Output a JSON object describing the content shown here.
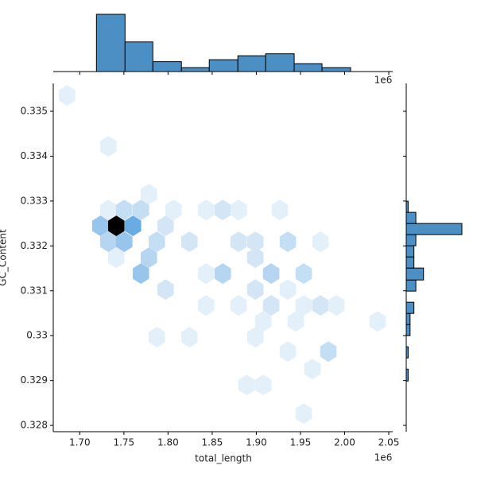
{
  "chart_data": {
    "type": "hexbin-joint",
    "xlabel": "total_length",
    "ylabel": "GC_Content",
    "x_offset_label": "1e6",
    "xlim": [
      1.67,
      2.0545
    ],
    "ylim": [
      0.32786,
      0.33562
    ],
    "xticks": [
      {
        "value": 1.7,
        "label": "1.70"
      },
      {
        "value": 1.75,
        "label": "1.75"
      },
      {
        "value": 1.8,
        "label": "1.80"
      },
      {
        "value": 1.85,
        "label": "1.85"
      },
      {
        "value": 1.9,
        "label": "1.90"
      },
      {
        "value": 1.95,
        "label": "1.95"
      },
      {
        "value": 2.0,
        "label": "2.00"
      },
      {
        "value": 2.05,
        "label": "2.05"
      }
    ],
    "yticks": [
      0.328,
      0.329,
      0.33,
      0.331,
      0.332,
      0.333,
      0.334,
      0.335
    ],
    "cmap": [
      "#f2f7fc",
      "#5aa3e0",
      "#000000"
    ],
    "hex_x": [
      1.6856,
      1.7324,
      1.7234,
      1.7414,
      1.7603,
      1.7324,
      1.7504,
      1.7693,
      1.7783,
      1.7324,
      1.7504,
      1.7873,
      1.7972,
      1.7414,
      1.7783,
      1.7693,
      1.8062,
      1.8242,
      1.8431,
      1.862,
      1.7972,
      1.862,
      1.8431,
      1.88,
      1.8989,
      1.9168,
      1.9357,
      1.9537,
      1.9726,
      1.8989,
      1.8989,
      1.88,
      1.9168,
      1.9078,
      1.9357,
      1.9726,
      1.9906,
      1.9537,
      1.8431,
      1.7873,
      1.8242,
      1.8989,
      1.9447,
      1.9816,
      1.9357,
      1.9636,
      2.0374,
      1.9078,
      1.889,
      1.9537,
      1.88,
      1.9267
    ],
    "hex_y": [
      0.335355,
      0.33422,
      0.332447,
      0.332447,
      0.332447,
      0.332801,
      0.332801,
      0.332801,
      0.333156,
      0.332092,
      0.332092,
      0.332092,
      0.332447,
      0.331738,
      0.331738,
      0.331383,
      0.332801,
      0.332092,
      0.332801,
      0.332801,
      0.331028,
      0.331383,
      0.331383,
      0.332092,
      0.332092,
      0.331383,
      0.332092,
      0.331383,
      0.332092,
      0.331738,
      0.331028,
      0.330674,
      0.330674,
      0.330319,
      0.331028,
      0.330674,
      0.330674,
      0.330674,
      0.330674,
      0.329965,
      0.329965,
      0.329965,
      0.330319,
      0.329645,
      0.329645,
      0.329255,
      0.330319,
      0.328901,
      0.328901,
      0.328262,
      0.332801,
      0.332801
    ],
    "hex_counts": [
      1,
      1,
      6,
      20,
      9,
      1,
      3,
      3,
      1,
      4,
      6,
      3,
      2,
      1,
      4,
      6,
      1,
      2,
      1,
      2,
      2,
      4,
      1,
      2,
      2,
      4,
      3,
      3,
      1,
      2,
      2,
      1,
      2,
      1,
      1,
      2,
      1,
      1,
      1,
      1,
      1,
      1,
      1,
      3,
      1,
      1,
      1,
      1,
      1,
      1,
      1,
      1
    ],
    "hist_color": "#4c8fc4",
    "x_hist_bins": [
      1.6874,
      1.7189,
      1.7513,
      1.7828,
      1.8152,
      1.8467,
      1.8791,
      1.9105,
      1.9429,
      1.9744,
      2.0068
    ],
    "x_hist_counts": [
      0,
      29,
      15,
      5,
      2,
      6,
      8,
      9,
      4,
      2
    ],
    "y_hist_bins": [
      0.328741,
      0.328989,
      0.329255,
      0.329504,
      0.329752,
      0.33,
      0.330248,
      0.330496,
      0.330745,
      0.330993,
      0.331241,
      0.331507,
      0.331755,
      0.332004,
      0.332252,
      0.3325,
      0.332748,
      0.332996,
      0.333245
    ],
    "y_hist_counts": [
      0,
      1,
      0,
      1,
      0,
      2,
      2,
      4,
      0,
      5,
      9,
      4,
      4,
      5,
      29,
      5,
      1,
      0
    ]
  }
}
